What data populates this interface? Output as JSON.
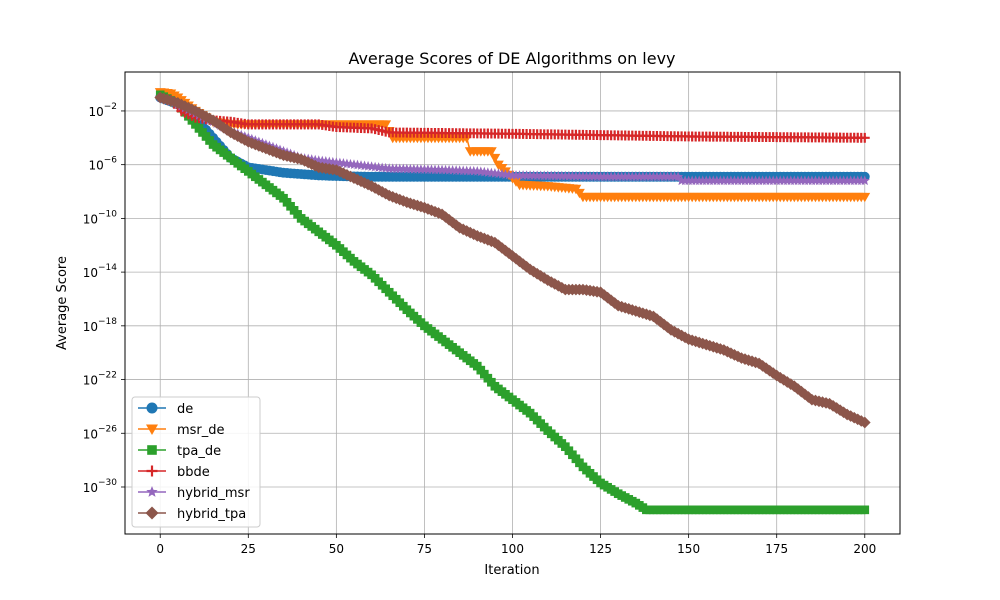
{
  "chart_data": {
    "type": "line",
    "title": "Average Scores of DE Algorithms on levy",
    "xlabel": "Iteration",
    "ylabel": "Average Score",
    "xlim": [
      -10,
      210
    ],
    "ylim_exp": [
      -33.5,
      0.9
    ],
    "yscale": "log",
    "xticks": [
      0,
      25,
      50,
      75,
      100,
      125,
      150,
      175,
      200
    ],
    "yticks": [
      {
        "exp": -2,
        "base": "10",
        "power": "−2"
      },
      {
        "exp": -6,
        "base": "10",
        "power": "−6"
      },
      {
        "exp": -10,
        "base": "10",
        "power": "−10"
      },
      {
        "exp": -14,
        "base": "10",
        "power": "−14"
      },
      {
        "exp": -18,
        "base": "10",
        "power": "−18"
      },
      {
        "exp": -22,
        "base": "10",
        "power": "−22"
      },
      {
        "exp": -26,
        "base": "10",
        "power": "−26"
      },
      {
        "exp": -30,
        "base": "10",
        "power": "−30"
      }
    ],
    "grid": true,
    "legend_position": "lower-left",
    "series": [
      {
        "name": "de",
        "color": "#1f77b4",
        "marker": "circle",
        "points": [
          [
            0,
            -1
          ],
          [
            5,
            -1.5
          ],
          [
            10,
            -2.5
          ],
          [
            15,
            -4
          ],
          [
            20,
            -5.5
          ],
          [
            25,
            -6.2
          ],
          [
            30,
            -6.4
          ],
          [
            35,
            -6.6
          ],
          [
            40,
            -6.7
          ],
          [
            45,
            -6.8
          ],
          [
            50,
            -6.85
          ],
          [
            60,
            -6.9
          ],
          [
            80,
            -6.9
          ],
          [
            100,
            -6.9
          ],
          [
            150,
            -6.9
          ],
          [
            200,
            -6.9
          ]
        ]
      },
      {
        "name": "msr_de",
        "color": "#ff7f0e",
        "marker": "triangle-down",
        "points": [
          [
            0,
            -0.6
          ],
          [
            3,
            -0.7
          ],
          [
            5,
            -1
          ],
          [
            10,
            -2
          ],
          [
            15,
            -2.8
          ],
          [
            20,
            -3
          ],
          [
            40,
            -3
          ],
          [
            64,
            -3
          ],
          [
            66,
            -4
          ],
          [
            80,
            -4
          ],
          [
            87,
            -4
          ],
          [
            88,
            -5
          ],
          [
            94,
            -5
          ],
          [
            96,
            -6
          ],
          [
            98,
            -6.5
          ],
          [
            100,
            -7
          ],
          [
            102,
            -7.5
          ],
          [
            110,
            -7.6
          ],
          [
            118,
            -7.8
          ],
          [
            120,
            -8.4
          ],
          [
            200,
            -8.4
          ]
        ]
      },
      {
        "name": "tpa_de",
        "color": "#2ca02c",
        "marker": "square",
        "points": [
          [
            0,
            -0.8
          ],
          [
            5,
            -1.5
          ],
          [
            10,
            -3
          ],
          [
            15,
            -4.5
          ],
          [
            20,
            -5.5
          ],
          [
            25,
            -6.5
          ],
          [
            30,
            -7.5
          ],
          [
            35,
            -8.5
          ],
          [
            40,
            -10
          ],
          [
            45,
            -11
          ],
          [
            50,
            -12
          ],
          [
            55,
            -13.2
          ],
          [
            60,
            -14.2
          ],
          [
            65,
            -15.5
          ],
          [
            70,
            -16.8
          ],
          [
            75,
            -18
          ],
          [
            80,
            -19
          ],
          [
            85,
            -20
          ],
          [
            90,
            -21
          ],
          [
            95,
            -22.5
          ],
          [
            100,
            -23.5
          ],
          [
            105,
            -24.5
          ],
          [
            110,
            -25.8
          ],
          [
            115,
            -27
          ],
          [
            120,
            -28.5
          ],
          [
            125,
            -29.7
          ],
          [
            130,
            -30.5
          ],
          [
            135,
            -31.2
          ],
          [
            138,
            -31.7
          ],
          [
            200,
            -31.7
          ]
        ]
      },
      {
        "name": "bbde",
        "color": "#d62728",
        "marker": "plus",
        "points": [
          [
            0,
            -1
          ],
          [
            3,
            -1.2
          ],
          [
            6,
            -2
          ],
          [
            10,
            -2.5
          ],
          [
            15,
            -2.7
          ],
          [
            20,
            -2.8
          ],
          [
            25,
            -3
          ],
          [
            45,
            -3
          ],
          [
            50,
            -3.2
          ],
          [
            60,
            -3.3
          ],
          [
            65,
            -3.6
          ],
          [
            100,
            -3.7
          ],
          [
            150,
            -3.9
          ],
          [
            200,
            -4
          ]
        ]
      },
      {
        "name": "hybrid_msr",
        "color": "#9467bd",
        "marker": "star",
        "points": [
          [
            0,
            -1
          ],
          [
            5,
            -1.5
          ],
          [
            10,
            -2.2
          ],
          [
            15,
            -2.8
          ],
          [
            20,
            -3.5
          ],
          [
            25,
            -4
          ],
          [
            30,
            -4.5
          ],
          [
            35,
            -5
          ],
          [
            40,
            -5.5
          ],
          [
            45,
            -5.7
          ],
          [
            55,
            -6
          ],
          [
            65,
            -6.3
          ],
          [
            80,
            -6.4
          ],
          [
            90,
            -6.5
          ],
          [
            100,
            -6.8
          ],
          [
            125,
            -6.9
          ],
          [
            147,
            -6.9
          ],
          [
            148,
            -7.2
          ],
          [
            200,
            -7.2
          ]
        ]
      },
      {
        "name": "hybrid_tpa",
        "color": "#8c564b",
        "marker": "diamond",
        "points": [
          [
            0,
            -1
          ],
          [
            5,
            -1.4
          ],
          [
            10,
            -2
          ],
          [
            15,
            -2.7
          ],
          [
            20,
            -3.6
          ],
          [
            25,
            -4.3
          ],
          [
            30,
            -4.8
          ],
          [
            35,
            -5.3
          ],
          [
            40,
            -5.6
          ],
          [
            45,
            -6.2
          ],
          [
            50,
            -6.4
          ],
          [
            55,
            -7
          ],
          [
            60,
            -7.6
          ],
          [
            65,
            -8.3
          ],
          [
            70,
            -8.8
          ],
          [
            75,
            -9.2
          ],
          [
            80,
            -9.7
          ],
          [
            85,
            -10.7
          ],
          [
            90,
            -11.3
          ],
          [
            95,
            -11.8
          ],
          [
            100,
            -12.8
          ],
          [
            105,
            -13.8
          ],
          [
            110,
            -14.6
          ],
          [
            115,
            -15.3
          ],
          [
            120,
            -15.3
          ],
          [
            125,
            -15.5
          ],
          [
            130,
            -16.5
          ],
          [
            135,
            -16.9
          ],
          [
            140,
            -17.3
          ],
          [
            145,
            -18.3
          ],
          [
            150,
            -19
          ],
          [
            155,
            -19.4
          ],
          [
            160,
            -19.8
          ],
          [
            165,
            -20.4
          ],
          [
            170,
            -20.8
          ],
          [
            175,
            -21.7
          ],
          [
            180,
            -22.5
          ],
          [
            185,
            -23.5
          ],
          [
            190,
            -23.8
          ],
          [
            195,
            -24.6
          ],
          [
            200,
            -25.2
          ]
        ]
      }
    ]
  }
}
